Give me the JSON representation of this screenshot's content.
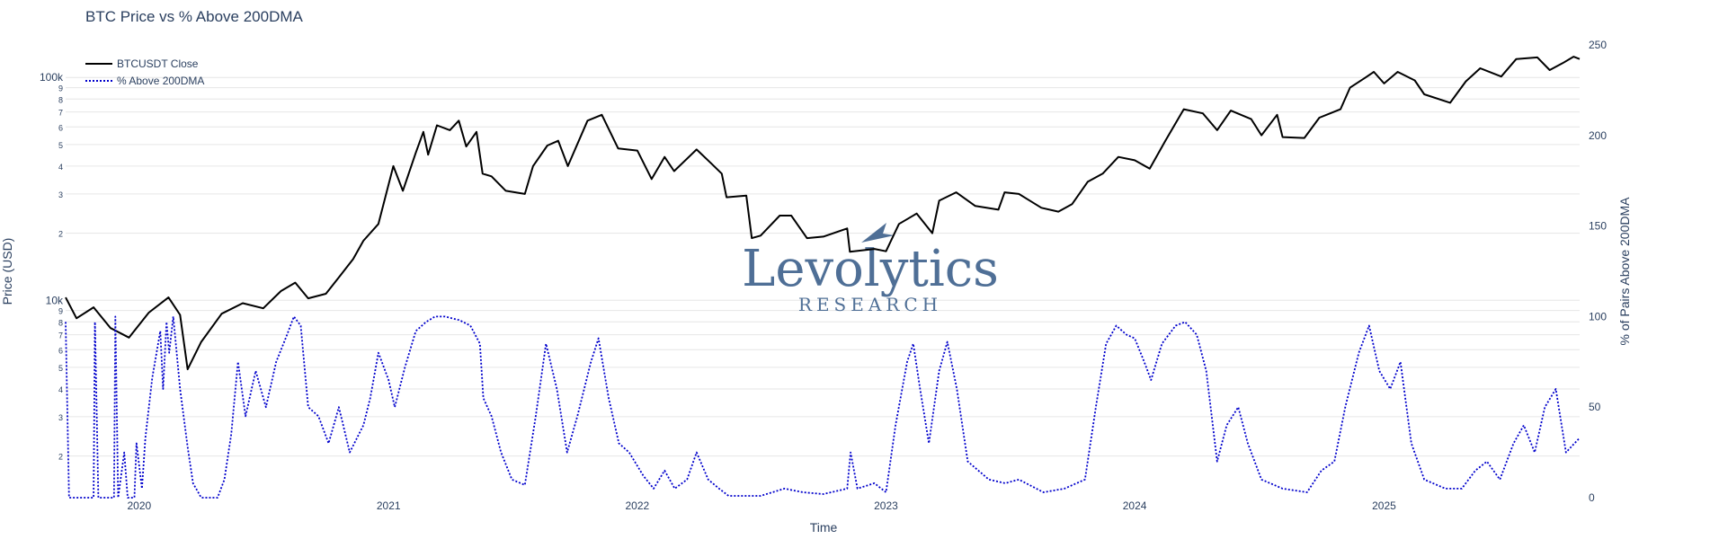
{
  "chart_data": {
    "type": "line",
    "title": "BTC Price vs % Above 200DMA",
    "xlabel": "Time",
    "ylabel": "Price (USD)",
    "y2label": "% of Pairs Above 200DMA",
    "y_scale": "log",
    "ylim": [
      1300,
      140000
    ],
    "y2lim": [
      0,
      250
    ],
    "xlim": [
      "2019-09-15",
      "2025-10-15"
    ],
    "x_ticks": [
      "2020",
      "2021",
      "2022",
      "2023",
      "2024",
      "2025"
    ],
    "y_tick_labels": [
      "10k",
      "100k"
    ],
    "y_minor_labels": [
      "2",
      "3",
      "4",
      "5",
      "6",
      "7",
      "8",
      "9"
    ],
    "y2_ticks": [
      0,
      50,
      100,
      150,
      200,
      250
    ],
    "grid": true,
    "legend_position": "top-left",
    "watermark": {
      "text": "Levolytics",
      "subtext": "RESEARCH"
    },
    "series": [
      {
        "name": "BTCUSDT Close",
        "axis": "left",
        "color": "#000000",
        "dash": "solid",
        "points": [
          [
            "2019-09-15",
            10300
          ],
          [
            "2019-10-01",
            8300
          ],
          [
            "2019-10-26",
            9300
          ],
          [
            "2019-11-20",
            7500
          ],
          [
            "2019-12-17",
            6800
          ],
          [
            "2020-01-15",
            8800
          ],
          [
            "2020-02-13",
            10300
          ],
          [
            "2020-03-01",
            8600
          ],
          [
            "2020-03-12",
            4900
          ],
          [
            "2020-04-01",
            6500
          ],
          [
            "2020-05-01",
            8700
          ],
          [
            "2020-06-01",
            9700
          ],
          [
            "2020-07-01",
            9200
          ],
          [
            "2020-07-27",
            11000
          ],
          [
            "2020-08-17",
            12000
          ],
          [
            "2020-09-05",
            10200
          ],
          [
            "2020-10-01",
            10700
          ],
          [
            "2020-10-21",
            12800
          ],
          [
            "2020-11-10",
            15300
          ],
          [
            "2020-11-25",
            18500
          ],
          [
            "2020-12-17",
            22000
          ],
          [
            "2021-01-08",
            40000
          ],
          [
            "2021-01-22",
            31000
          ],
          [
            "2021-02-10",
            46000
          ],
          [
            "2021-02-21",
            57000
          ],
          [
            "2021-02-28",
            45000
          ],
          [
            "2021-03-13",
            61000
          ],
          [
            "2021-04-01",
            58000
          ],
          [
            "2021-04-14",
            64000
          ],
          [
            "2021-04-25",
            49000
          ],
          [
            "2021-05-10",
            57000
          ],
          [
            "2021-05-19",
            37000
          ],
          [
            "2021-06-01",
            36000
          ],
          [
            "2021-06-22",
            31000
          ],
          [
            "2021-07-20",
            30000
          ],
          [
            "2021-08-01",
            40000
          ],
          [
            "2021-08-22",
            49500
          ],
          [
            "2021-09-07",
            52000
          ],
          [
            "2021-09-21",
            40000
          ],
          [
            "2021-10-20",
            64000
          ],
          [
            "2021-11-10",
            68000
          ],
          [
            "2021-12-04",
            48000
          ],
          [
            "2022-01-01",
            47000
          ],
          [
            "2022-01-22",
            35000
          ],
          [
            "2022-02-10",
            44000
          ],
          [
            "2022-02-24",
            38000
          ],
          [
            "2022-03-29",
            47500
          ],
          [
            "2022-04-20",
            41000
          ],
          [
            "2022-05-05",
            37000
          ],
          [
            "2022-05-12",
            29000
          ],
          [
            "2022-06-10",
            29500
          ],
          [
            "2022-06-18",
            19000
          ],
          [
            "2022-07-01",
            19500
          ],
          [
            "2022-07-29",
            24000
          ],
          [
            "2022-08-15",
            24000
          ],
          [
            "2022-09-07",
            19000
          ],
          [
            "2022-10-01",
            19300
          ],
          [
            "2022-11-05",
            21000
          ],
          [
            "2022-11-09",
            16500
          ],
          [
            "2022-12-15",
            17000
          ],
          [
            "2023-01-01",
            16600
          ],
          [
            "2023-01-20",
            22000
          ],
          [
            "2023-02-15",
            24500
          ],
          [
            "2023-03-10",
            20000
          ],
          [
            "2023-03-20",
            28000
          ],
          [
            "2023-04-14",
            30500
          ],
          [
            "2023-05-12",
            26500
          ],
          [
            "2023-06-15",
            25500
          ],
          [
            "2023-06-24",
            30500
          ],
          [
            "2023-07-15",
            30000
          ],
          [
            "2023-08-17",
            26000
          ],
          [
            "2023-09-11",
            25000
          ],
          [
            "2023-10-01",
            27000
          ],
          [
            "2023-10-24",
            34000
          ],
          [
            "2023-11-15",
            37000
          ],
          [
            "2023-12-08",
            44000
          ],
          [
            "2024-01-01",
            42500
          ],
          [
            "2024-01-23",
            39000
          ],
          [
            "2024-02-15",
            52000
          ],
          [
            "2024-03-13",
            72000
          ],
          [
            "2024-04-10",
            69000
          ],
          [
            "2024-05-01",
            58000
          ],
          [
            "2024-05-21",
            71000
          ],
          [
            "2024-06-20",
            65000
          ],
          [
            "2024-07-05",
            55000
          ],
          [
            "2024-07-28",
            68000
          ],
          [
            "2024-08-05",
            54000
          ],
          [
            "2024-09-06",
            53500
          ],
          [
            "2024-09-28",
            66000
          ],
          [
            "2024-10-29",
            72000
          ],
          [
            "2024-11-12",
            90000
          ],
          [
            "2024-12-05",
            100000
          ],
          [
            "2024-12-17",
            106000
          ],
          [
            "2025-01-01",
            94000
          ],
          [
            "2025-01-21",
            106000
          ],
          [
            "2025-02-15",
            97000
          ],
          [
            "2025-03-01",
            84000
          ],
          [
            "2025-04-08",
            77000
          ],
          [
            "2025-05-01",
            96000
          ],
          [
            "2025-05-22",
            110000
          ],
          [
            "2025-06-22",
            101000
          ],
          [
            "2025-07-14",
            121000
          ],
          [
            "2025-08-14",
            123000
          ],
          [
            "2025-09-01",
            108000
          ],
          [
            "2025-09-20",
            116000
          ],
          [
            "2025-10-06",
            124000
          ],
          [
            "2025-10-15",
            121000
          ]
        ]
      },
      {
        "name": "% Above 200DMA",
        "axis": "right",
        "color": "#0000cc",
        "dash": "dotted",
        "points": [
          [
            "2019-09-15",
            97
          ],
          [
            "2019-09-20",
            0
          ],
          [
            "2019-10-26",
            0
          ],
          [
            "2019-10-28",
            97
          ],
          [
            "2019-11-02",
            0
          ],
          [
            "2019-11-25",
            0
          ],
          [
            "2019-11-27",
            100
          ],
          [
            "2019-12-01",
            0
          ],
          [
            "2019-12-10",
            25
          ],
          [
            "2019-12-15",
            0
          ],
          [
            "2019-12-25",
            0
          ],
          [
            "2019-12-28",
            30
          ],
          [
            "2020-01-05",
            5
          ],
          [
            "2020-01-10",
            33
          ],
          [
            "2020-01-20",
            66
          ],
          [
            "2020-02-01",
            92
          ],
          [
            "2020-02-05",
            60
          ],
          [
            "2020-02-10",
            97
          ],
          [
            "2020-02-14",
            80
          ],
          [
            "2020-02-20",
            100
          ],
          [
            "2020-03-01",
            60
          ],
          [
            "2020-03-12",
            28
          ],
          [
            "2020-03-20",
            8
          ],
          [
            "2020-04-01",
            0
          ],
          [
            "2020-04-25",
            0
          ],
          [
            "2020-05-05",
            10
          ],
          [
            "2020-05-15",
            35
          ],
          [
            "2020-05-25",
            75
          ],
          [
            "2020-06-05",
            45
          ],
          [
            "2020-06-20",
            70
          ],
          [
            "2020-07-05",
            50
          ],
          [
            "2020-07-20",
            75
          ],
          [
            "2020-08-05",
            90
          ],
          [
            "2020-08-15",
            100
          ],
          [
            "2020-08-25",
            95
          ],
          [
            "2020-09-05",
            50
          ],
          [
            "2020-09-20",
            45
          ],
          [
            "2020-10-05",
            30
          ],
          [
            "2020-10-20",
            50
          ],
          [
            "2020-11-05",
            25
          ],
          [
            "2020-11-25",
            40
          ],
          [
            "2020-12-05",
            55
          ],
          [
            "2020-12-17",
            80
          ],
          [
            "2021-01-01",
            65
          ],
          [
            "2021-01-10",
            50
          ],
          [
            "2021-01-25",
            72
          ],
          [
            "2021-02-10",
            92
          ],
          [
            "2021-02-25",
            97
          ],
          [
            "2021-03-10",
            100
          ],
          [
            "2021-03-25",
            100
          ],
          [
            "2021-04-15",
            98
          ],
          [
            "2021-05-01",
            95
          ],
          [
            "2021-05-15",
            85
          ],
          [
            "2021-05-20",
            55
          ],
          [
            "2021-06-01",
            45
          ],
          [
            "2021-06-15",
            25
          ],
          [
            "2021-07-01",
            10
          ],
          [
            "2021-07-20",
            7
          ],
          [
            "2021-08-05",
            45
          ],
          [
            "2021-08-20",
            85
          ],
          [
            "2021-09-05",
            60
          ],
          [
            "2021-09-20",
            25
          ],
          [
            "2021-10-05",
            45
          ],
          [
            "2021-10-25",
            75
          ],
          [
            "2021-11-05",
            88
          ],
          [
            "2021-11-20",
            55
          ],
          [
            "2021-12-05",
            30
          ],
          [
            "2021-12-20",
            25
          ],
          [
            "2022-01-10",
            12
          ],
          [
            "2022-01-25",
            5
          ],
          [
            "2022-02-10",
            15
          ],
          [
            "2022-02-25",
            5
          ],
          [
            "2022-03-15",
            10
          ],
          [
            "2022-03-29",
            25
          ],
          [
            "2022-04-15",
            10
          ],
          [
            "2022-05-01",
            5
          ],
          [
            "2022-05-15",
            1
          ],
          [
            "2022-07-01",
            1
          ],
          [
            "2022-08-05",
            5
          ],
          [
            "2022-09-01",
            3
          ],
          [
            "2022-10-01",
            2
          ],
          [
            "2022-11-05",
            5
          ],
          [
            "2022-11-10",
            25
          ],
          [
            "2022-11-20",
            5
          ],
          [
            "2022-12-15",
            8
          ],
          [
            "2023-01-01",
            3
          ],
          [
            "2023-01-15",
            40
          ],
          [
            "2023-02-01",
            75
          ],
          [
            "2023-02-10",
            85
          ],
          [
            "2023-02-20",
            60
          ],
          [
            "2023-03-05",
            30
          ],
          [
            "2023-03-20",
            70
          ],
          [
            "2023-04-01",
            86
          ],
          [
            "2023-04-15",
            60
          ],
          [
            "2023-05-01",
            20
          ],
          [
            "2023-06-01",
            10
          ],
          [
            "2023-06-25",
            8
          ],
          [
            "2023-07-15",
            10
          ],
          [
            "2023-08-20",
            3
          ],
          [
            "2023-09-20",
            5
          ],
          [
            "2023-10-20",
            10
          ],
          [
            "2023-11-05",
            50
          ],
          [
            "2023-11-20",
            85
          ],
          [
            "2023-12-05",
            95
          ],
          [
            "2023-12-20",
            90
          ],
          [
            "2024-01-01",
            88
          ],
          [
            "2024-01-15",
            75
          ],
          [
            "2024-01-25",
            65
          ],
          [
            "2024-02-10",
            85
          ],
          [
            "2024-03-01",
            95
          ],
          [
            "2024-03-15",
            97
          ],
          [
            "2024-04-01",
            90
          ],
          [
            "2024-04-15",
            70
          ],
          [
            "2024-05-01",
            20
          ],
          [
            "2024-05-15",
            40
          ],
          [
            "2024-06-01",
            50
          ],
          [
            "2024-06-15",
            30
          ],
          [
            "2024-07-05",
            10
          ],
          [
            "2024-08-05",
            5
          ],
          [
            "2024-09-10",
            3
          ],
          [
            "2024-10-01",
            15
          ],
          [
            "2024-10-20",
            20
          ],
          [
            "2024-11-05",
            50
          ],
          [
            "2024-11-25",
            80
          ],
          [
            "2024-12-10",
            95
          ],
          [
            "2024-12-25",
            70
          ],
          [
            "2025-01-10",
            60
          ],
          [
            "2025-01-25",
            75
          ],
          [
            "2025-02-10",
            30
          ],
          [
            "2025-03-01",
            10
          ],
          [
            "2025-04-01",
            5
          ],
          [
            "2025-04-25",
            5
          ],
          [
            "2025-05-15",
            15
          ],
          [
            "2025-06-01",
            20
          ],
          [
            "2025-06-20",
            10
          ],
          [
            "2025-07-10",
            30
          ],
          [
            "2025-07-25",
            40
          ],
          [
            "2025-08-10",
            25
          ],
          [
            "2025-08-25",
            50
          ],
          [
            "2025-09-10",
            60
          ],
          [
            "2025-09-25",
            25
          ],
          [
            "2025-10-15",
            33
          ]
        ]
      }
    ]
  }
}
